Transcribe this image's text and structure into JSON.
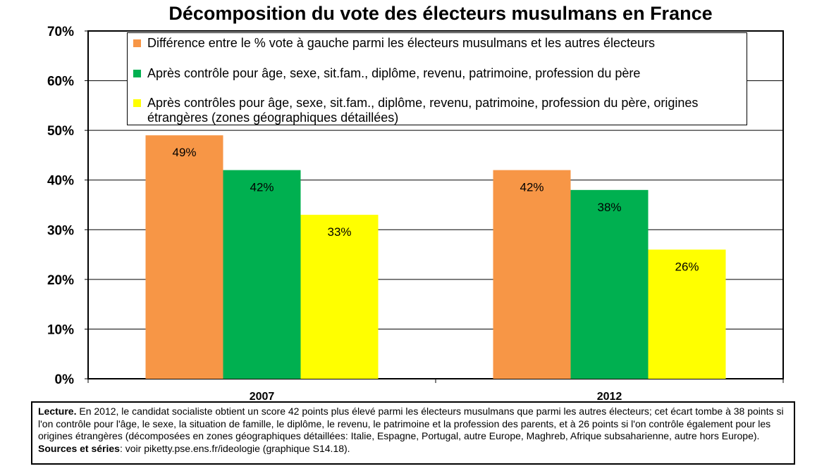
{
  "chart_data": {
    "type": "bar",
    "title": "Décomposition du vote des électeurs musulmans en France",
    "categories": [
      "2007",
      "2012"
    ],
    "series": [
      {
        "name": "Différence entre le % vote à gauche parmi les électeurs musulmans et les autres électeurs",
        "values": [
          49,
          42
        ],
        "labels": [
          "49%",
          "42%"
        ],
        "color": "#F79646"
      },
      {
        "name": "Après contrôle pour âge, sexe, sit.fam., diplôme, revenu, patrimoine, profession du père",
        "values": [
          42,
          38
        ],
        "labels": [
          "42%",
          "38%"
        ],
        "color": "#00B050"
      },
      {
        "name": "Après contrôles pour âge, sexe, sit.fam., diplôme, revenu, patrimoine, profession du père, origines étrangères (zones géographiques détaillées)",
        "values": [
          33,
          26
        ],
        "labels": [
          "33%",
          "26%"
        ],
        "color": "#FFFF00"
      }
    ],
    "ylim": [
      0,
      70
    ],
    "yticks": [
      "0%",
      "10%",
      "20%",
      "30%",
      "40%",
      "50%",
      "60%",
      "70%"
    ],
    "grid": true,
    "legend": "top"
  },
  "note": {
    "lead": "Lecture.",
    "body": " En 2012, le candidat socialiste obtient un score 42 points plus élevé parmi les électeurs musulmans que parmi les autres électeurs; cet écart tombe à 38 points si l'on contrôle pour l'âge, le sexe, la situation de famille, le diplôme, le revenu, le patrimoine et la profession des parents, et à 26 points si l'on contrôle également pour les origines étrangères (décomposées en zones géographiques détaillées: Italie, Espagne, Portugal, autre Europe, Maghreb, Afrique subsaharienne, autre hors Europe). ",
    "sources_label": "Sources et séries",
    "sources_text": ": voir piketty.pse.ens.fr/ideologie (graphique S14.18)."
  }
}
